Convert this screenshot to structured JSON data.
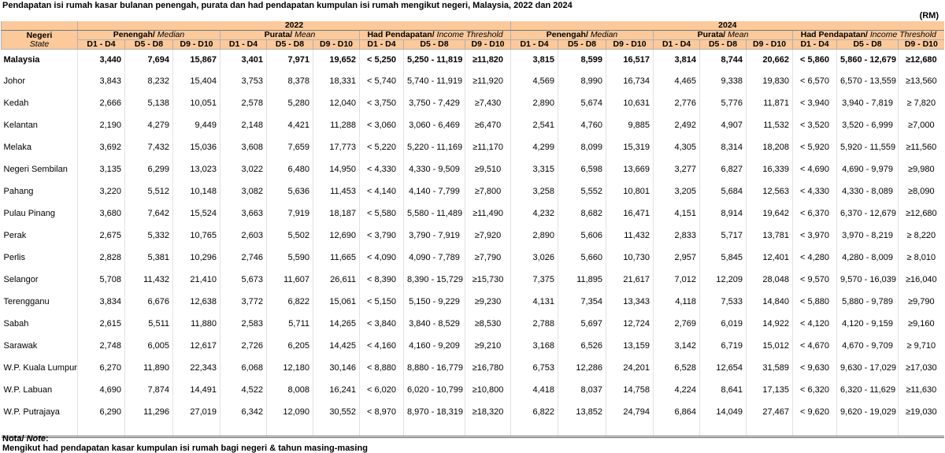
{
  "header": {
    "title": "Pendapatan isi rumah kasar bulanan penengah, purata dan had pendapatan kumpulan isi rumah mengikut negeri, Malaysia, 2022 dan 2024",
    "unit": "(RM)",
    "state_ms": "Negeri",
    "state_en": "State",
    "years": [
      "2022",
      "2024"
    ],
    "groups": [
      {
        "ms": "Penengah/",
        "en": "Median"
      },
      {
        "ms": "Purata/",
        "en": "Mean"
      },
      {
        "ms": "Had Pendapatan/",
        "en": "Income Threshold"
      }
    ],
    "deciles": [
      "D1 - D4",
      "D5 - D8",
      "D9 - D10"
    ]
  },
  "table": {
    "rows": [
      [
        "Malaysia",
        "3,440",
        "7,694",
        "15,867",
        "3,401",
        "7,971",
        "19,652",
        "< 5,250",
        "5,250 - 11,819",
        "≥11,820",
        "3,815",
        "8,599",
        "16,517",
        "3,814",
        "8,744",
        "20,662",
        "< 5,860",
        "5,860 - 12,679",
        "≥12,680"
      ],
      [
        "Johor",
        "3,843",
        "8,232",
        "15,404",
        "3,753",
        "8,378",
        "18,331",
        "< 5,740",
        "5,740 - 11,919",
        "≥11,920",
        "4,569",
        "8,990",
        "16,734",
        "4,465",
        "9,338",
        "19,830",
        "< 6,570",
        "6,570 - 13,559",
        "≥13,560"
      ],
      [
        "Kedah",
        "2,666",
        "5,138",
        "10,051",
        "2,578",
        "5,280",
        "12,040",
        "< 3,750",
        "3,750 - 7,429",
        "≥7,430",
        "2,890",
        "5,674",
        "10,631",
        "2,776",
        "5,776",
        "11,871",
        "< 3,940",
        "3,940 - 7,819",
        "≥ 7,820"
      ],
      [
        "Kelantan",
        "2,190",
        "4,279",
        "9,449",
        "2,148",
        "4,421",
        "11,288",
        "< 3,060",
        "3,060 - 6,469",
        "≥6,470",
        "2,541",
        "4,760",
        "9,885",
        "2,492",
        "4,907",
        "11,532",
        "< 3,520",
        "3,520 - 6,999",
        "≥7,000"
      ],
      [
        "Melaka",
        "3,692",
        "7,432",
        "15,036",
        "3,608",
        "7,659",
        "17,773",
        "< 5,220",
        "5,220 - 11,169",
        "≥11,170",
        "4,299",
        "8,099",
        "15,319",
        "4,305",
        "8,314",
        "18,208",
        "< 5,920",
        "5,920 - 11,559",
        "≥11,560"
      ],
      [
        "Negeri Sembilan",
        "3,135",
        "6,299",
        "13,023",
        "3,022",
        "6,480",
        "14,950",
        "< 4,330",
        "4,330 - 9,509",
        "≥9,510",
        "3,315",
        "6,598",
        "13,669",
        "3,277",
        "6,827",
        "16,339",
        "< 4,690",
        "4,690 - 9,979",
        "≥9,980"
      ],
      [
        "Pahang",
        "3,220",
        "5,512",
        "10,148",
        "3,082",
        "5,636",
        "11,453",
        "< 4,140",
        "4,140 - 7,799",
        "≥7,800",
        "3,258",
        "5,552",
        "10,801",
        "3,205",
        "5,684",
        "12,563",
        "< 4,330",
        "4,330 - 8,089",
        "≥8,090"
      ],
      [
        "Pulau Pinang",
        "3,680",
        "7,642",
        "15,524",
        "3,663",
        "7,919",
        "18,187",
        "< 5,580",
        "5,580 - 11,489",
        "≥11,490",
        "4,232",
        "8,682",
        "16,471",
        "4,151",
        "8,914",
        "19,642",
        "< 6,370",
        "6,370 - 12,679",
        "≥12,680"
      ],
      [
        "Perak",
        "2,675",
        "5,332",
        "10,765",
        "2,603",
        "5,502",
        "12,690",
        "< 3,790",
        "3,790 - 7,919",
        "≥7,920",
        "2,890",
        "5,606",
        "11,432",
        "2,833",
        "5,717",
        "13,781",
        "< 3,970",
        "3,970 - 8,219",
        "≥ 8,220"
      ],
      [
        "Perlis",
        "2,828",
        "5,381",
        "10,296",
        "2,746",
        "5,590",
        "11,665",
        "< 4,090",
        "4,090 - 7,789",
        "≥7,790",
        "3,026",
        "5,660",
        "10,730",
        "2,957",
        "5,845",
        "12,401",
        "< 4,280",
        "4,280 - 8,009",
        "≥ 8,010"
      ],
      [
        "Selangor",
        "5,708",
        "11,432",
        "21,410",
        "5,673",
        "11,607",
        "26,611",
        "< 8,390",
        "8,390 - 15,729",
        "≥15,730",
        "7,375",
        "11,895",
        "21,617",
        "7,012",
        "12,209",
        "28,048",
        "< 9,570",
        "9,570 - 16,039",
        "≥16,040"
      ],
      [
        "Terengganu",
        "3,834",
        "6,676",
        "12,638",
        "3,772",
        "6,822",
        "15,061",
        "< 5,150",
        "5,150 - 9,229",
        "≥9,230",
        "4,131",
        "7,354",
        "13,343",
        "4,118",
        "7,533",
        "14,840",
        "< 5,880",
        "5,880 - 9,789",
        "≥9,790"
      ],
      [
        "Sabah",
        "2,615",
        "5,511",
        "11,880",
        "2,583",
        "5,711",
        "14,265",
        "< 3,840",
        "3,840 - 8,529",
        "≥8,530",
        "2,788",
        "5,697",
        "12,724",
        "2,769",
        "6,019",
        "14,922",
        "< 4,120",
        "4,120 - 9,159",
        "≥9,160"
      ],
      [
        "Sarawak",
        "2,748",
        "6,005",
        "12,617",
        "2,726",
        "6,205",
        "14,425",
        "< 4,160",
        "4,160 - 9,209",
        "≥9,210",
        "3,168",
        "6,526",
        "13,159",
        "3,142",
        "6,719",
        "15,012",
        "< 4,670",
        "4,670 - 9,709",
        "≥ 9,710"
      ],
      [
        "W.P. Kuala Lumpur",
        "6,270",
        "11,890",
        "22,343",
        "6,068",
        "12,180",
        "30,146",
        "< 8,880",
        "8,880 - 16,779",
        "≥16,780",
        "6,753",
        "12,286",
        "24,201",
        "6,528",
        "12,654",
        "31,589",
        "< 9,630",
        "9,630 - 17,029",
        "≥17,030"
      ],
      [
        "W.P. Labuan",
        "4,690",
        "7,874",
        "14,491",
        "4,522",
        "8,008",
        "16,241",
        "< 6,020",
        "6,020 - 10,799",
        "≥10,800",
        "4,418",
        "8,037",
        "14,758",
        "4,224",
        "8,641",
        "17,135",
        "< 6,320",
        "6,320 - 11,629",
        "≥11,630"
      ],
      [
        "W.P. Putrajaya",
        "6,290",
        "11,296",
        "27,019",
        "6,342",
        "12,090",
        "30,552",
        "< 8,970",
        "8,970 - 18,319",
        "≥18,320",
        "6,822",
        "13,852",
        "24,794",
        "6,864",
        "14,049",
        "27,467",
        "< 9,620",
        "9,620 - 19,029",
        "≥19,030"
      ]
    ]
  },
  "note": {
    "label_ms": "Nota/",
    "label_en": "Note",
    "text": "Mengikut had pendapatan kasar kumpulan isi rumah bagi negeri & tahun masing-masing"
  }
}
